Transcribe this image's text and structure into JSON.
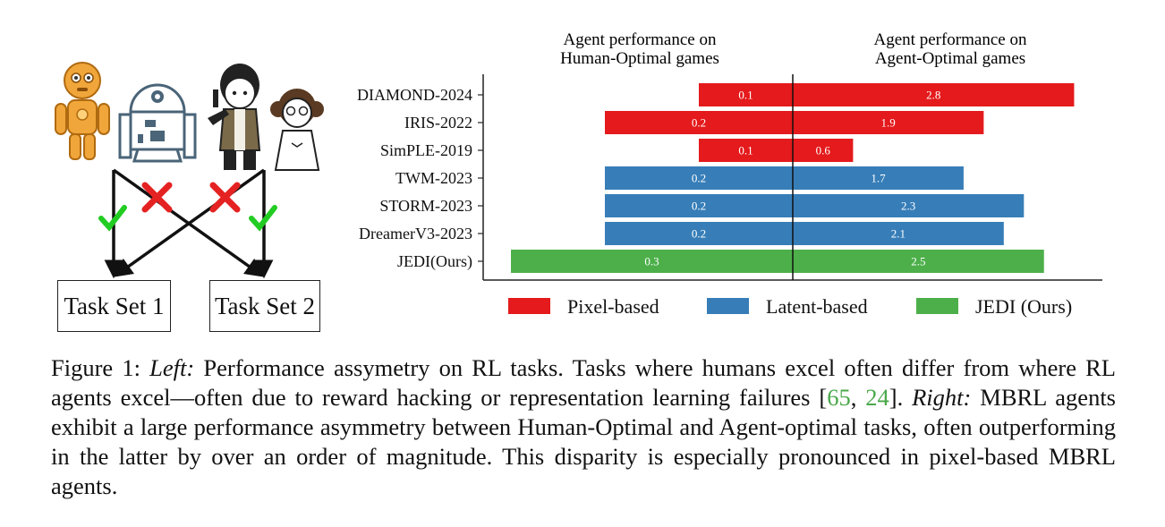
{
  "left_panel": {
    "task_set_1": "Task Set 1",
    "task_set_2": "Task Set 2"
  },
  "colors": {
    "pixel": "#e41a1c",
    "latent": "#377eb8",
    "jedi": "#4daf4a",
    "check": "#22cc22",
    "cross": "#e52222"
  },
  "chart_data": {
    "type": "bar",
    "orientation": "horizontal-diverging",
    "left_title": [
      "Agent performance on",
      "Human-Optimal games"
    ],
    "right_title": [
      "Agent performance on",
      "Agent-Optimal games"
    ],
    "categories": [
      "DIAMOND-2024",
      "IRIS-2022",
      "SimPLE-2019",
      "TWM-2023",
      "STORM-2023",
      "DreamerV3-2023",
      "JEDI(Ours)"
    ],
    "group": [
      "Pixel-based",
      "Pixel-based",
      "Pixel-based",
      "Latent-based",
      "Latent-based",
      "Latent-based",
      "JEDI (Ours)"
    ],
    "human_optimal": [
      0.1,
      0.2,
      0.1,
      0.2,
      0.2,
      0.2,
      0.3
    ],
    "agent_optimal": [
      2.8,
      1.9,
      0.6,
      1.7,
      2.3,
      2.1,
      2.5
    ],
    "legend": [
      {
        "label": "Pixel-based",
        "color": "#e41a1c"
      },
      {
        "label": "Latent-based",
        "color": "#377eb8"
      },
      {
        "label": "JEDI (Ours)",
        "color": "#4daf4a"
      }
    ],
    "legend_position": "bottom",
    "grid": false
  },
  "caption": {
    "label": "Figure 1: ",
    "left_tag": "Left:",
    "text1": " Performance assymetry on RL tasks. Tasks where humans excel often differ from where RL agents excel—often due to reward hacking or representation learning failures [",
    "cite1": "65",
    "sep": ", ",
    "cite2": "24",
    "text2": "]. ",
    "right_tag": "Right:",
    "text3": " MBRL agents exhibit a large performance asymmetry between Human-Optimal and Agent-optimal tasks, often outperforming in the latter by over an order of magnitude. This disparity is especially pronounced in pixel-based MBRL agents."
  }
}
